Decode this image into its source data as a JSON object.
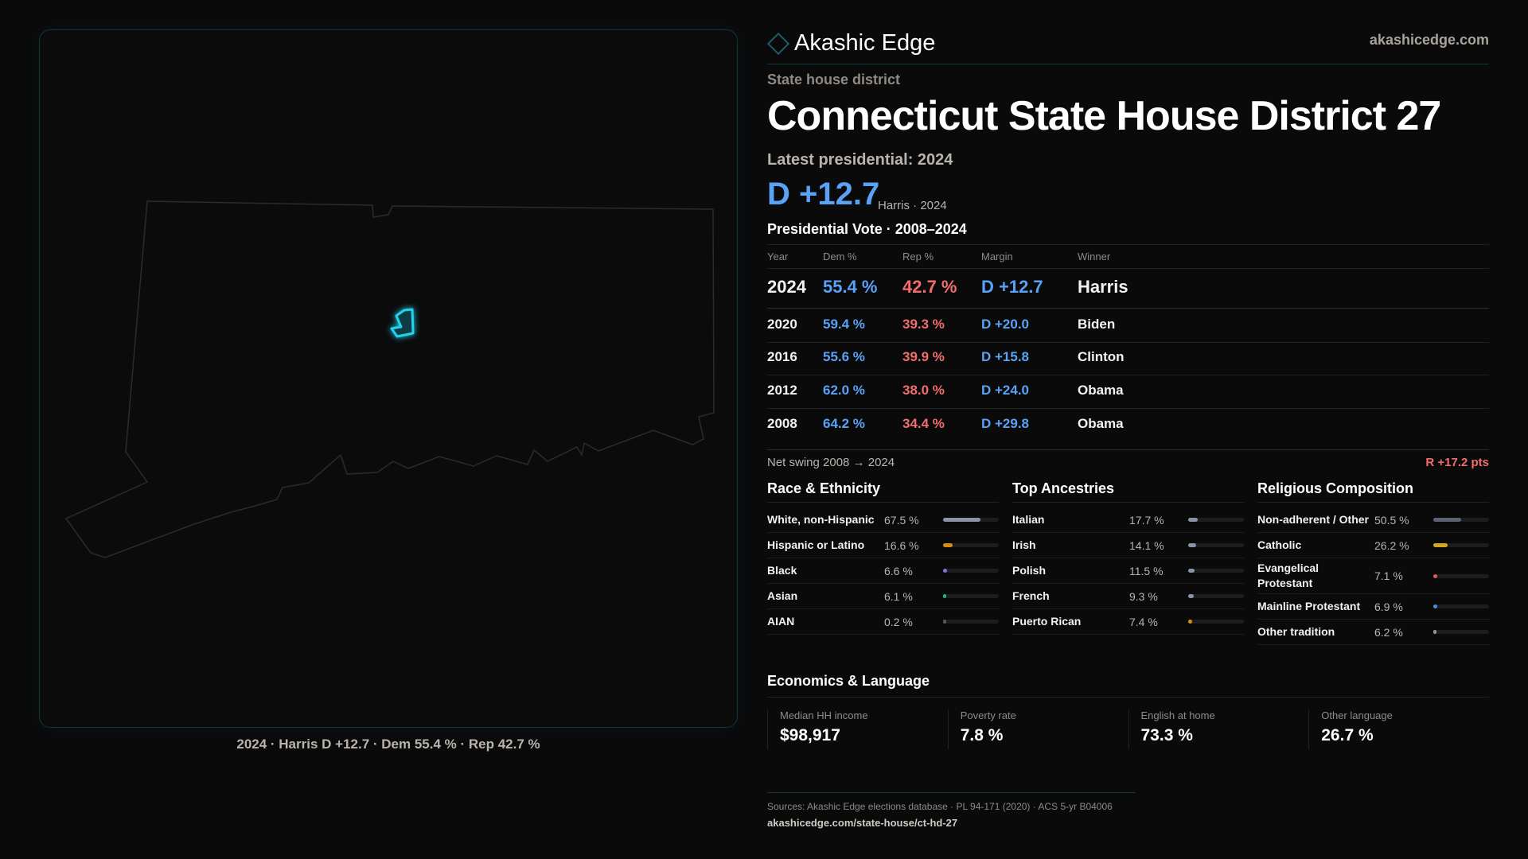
{
  "brand": {
    "name": "Akashic Edge",
    "site": "akashicedge.com"
  },
  "map": {
    "caption": "2024 · Harris D +12.7 · Dem 55.4 % · Rep 42.7 %",
    "highlight_color": "#22d3ee"
  },
  "header": {
    "eyebrow": "State house district",
    "title": "Connecticut State House District 27",
    "latest": "Latest presidential: 2024",
    "margin": "D +12.7",
    "margin_sub": "Harris · 2024"
  },
  "colors": {
    "dem": "#5aa2f5",
    "rep": "#f26d6d"
  },
  "votes": {
    "title": "Presidential Vote · 2008–2024",
    "headers": [
      "Year",
      "Dem %",
      "Rep %",
      "Margin",
      "Winner"
    ],
    "rows": [
      {
        "year": "2024",
        "dem": "55.4 %",
        "rep": "42.7 %",
        "margin": "D +12.7",
        "winner": "Harris"
      },
      {
        "year": "2020",
        "dem": "59.4 %",
        "rep": "39.3 %",
        "margin": "D +20.0",
        "winner": "Biden"
      },
      {
        "year": "2016",
        "dem": "55.6 %",
        "rep": "39.9 %",
        "margin": "D +15.8",
        "winner": "Clinton"
      },
      {
        "year": "2012",
        "dem": "62.0 %",
        "rep": "38.0 %",
        "margin": "D +24.0",
        "winner": "Obama"
      },
      {
        "year": "2008",
        "dem": "64.2 %",
        "rep": "34.4 %",
        "margin": "D +29.8",
        "winner": "Obama"
      }
    ],
    "swing_label": "Net swing 2008 → 2024",
    "swing_value": "R +17.2 pts"
  },
  "demographics": [
    {
      "title": "Race & Ethnicity",
      "items": [
        {
          "label": "White, non-Hispanic",
          "value": "67.5 %",
          "pct": 67.5,
          "color": "#8a94a6"
        },
        {
          "label": "Hispanic or Latino",
          "value": "16.6 %",
          "pct": 16.6,
          "color": "#d98e0b"
        },
        {
          "label": "Black",
          "value": "6.6 %",
          "pct": 6.6,
          "color": "#8b6fd6"
        },
        {
          "label": "Asian",
          "value": "6.1 %",
          "pct": 6.1,
          "color": "#22b07d"
        },
        {
          "label": "AIAN",
          "value": "0.2 %",
          "pct": 0.2,
          "color": "#555a60"
        }
      ]
    },
    {
      "title": "Top Ancestries",
      "items": [
        {
          "label": "Italian",
          "value": "17.7 %",
          "pct": 17.7,
          "color": "#8a94a6"
        },
        {
          "label": "Irish",
          "value": "14.1 %",
          "pct": 14.1,
          "color": "#8a94a6"
        },
        {
          "label": "Polish",
          "value": "11.5 %",
          "pct": 11.5,
          "color": "#8a94a6"
        },
        {
          "label": "French",
          "value": "9.3 %",
          "pct": 9.3,
          "color": "#8a94a6"
        },
        {
          "label": "Puerto Rican",
          "value": "7.4 %",
          "pct": 7.4,
          "color": "#d98e0b"
        }
      ]
    },
    {
      "title": "Religious Composition",
      "items": [
        {
          "label": "Non-adherent / Other",
          "value": "50.5 %",
          "pct": 50.5,
          "color": "#5c6370"
        },
        {
          "label": "Catholic",
          "value": "26.2 %",
          "pct": 26.2,
          "color": "#d4a61c"
        },
        {
          "label": "Evangelical Protestant",
          "value": "7.1 %",
          "pct": 7.1,
          "color": "#e05a5a"
        },
        {
          "label": "Mainline Protestant",
          "value": "6.9 %",
          "pct": 6.9,
          "color": "#4a8ee0"
        },
        {
          "label": "Other tradition",
          "value": "6.2 %",
          "pct": 6.2,
          "color": "#8a94a6"
        }
      ]
    }
  ],
  "economics": {
    "title": "Economics & Language",
    "cards": [
      {
        "label": "Median HH income",
        "value": "$98,917"
      },
      {
        "label": "Poverty rate",
        "value": "7.8 %"
      },
      {
        "label": "English at home",
        "value": "73.3 %"
      },
      {
        "label": "Other language",
        "value": "26.7 %"
      }
    ]
  },
  "footer": {
    "sources": "Sources: Akashic Edge elections database · PL 94-171 (2020) · ACS 5-yr B04006",
    "url": "akashicedge.com/state-house/ct-hd-27"
  }
}
